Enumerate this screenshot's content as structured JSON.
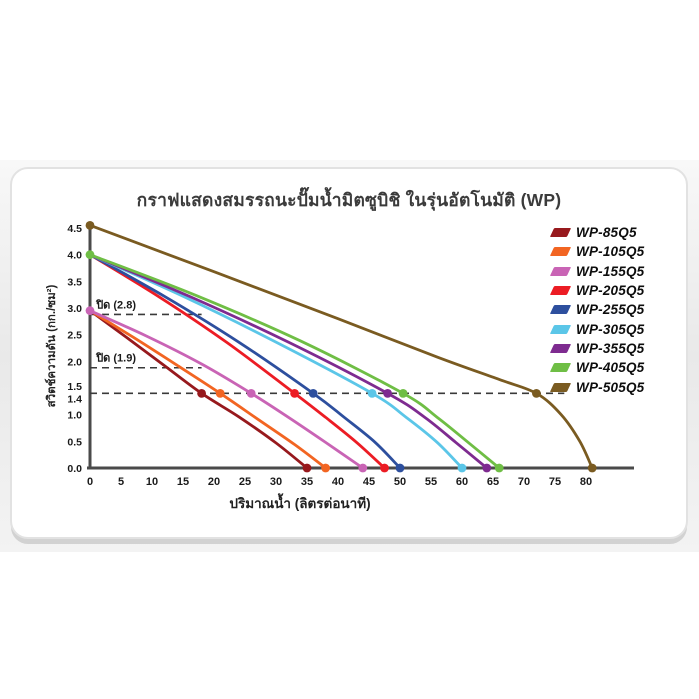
{
  "title": "กราฟแสดงสมรรถนะปั๊มน้ำมิตซูบิชิ ในรุ่นอัตโนมัติ (WP)",
  "chart_data": {
    "type": "line",
    "title": "กราฟแสดงสมรรถนะปั๊มน้ำมิตซูบิชิ ในรุ่นอัตโนมัติ (WP)",
    "xlabel": "ปริมาณน้ำ (ลิตรต่อนาที)",
    "ylabel": "สวิตช์ความดัน (กก./ซม²)",
    "xlim": [
      0,
      80
    ],
    "ylim": [
      0,
      4.5
    ],
    "grid": false,
    "legend_position": "right",
    "x_ticks": [
      0,
      5,
      10,
      15,
      20,
      25,
      30,
      35,
      40,
      45,
      50,
      55,
      60,
      65,
      70,
      75,
      80
    ],
    "y_ticks": [
      "0.0",
      "0.5",
      "1.0",
      "1.4",
      "1.5",
      "2.0",
      "2.5",
      "3.0",
      "3.5",
      "4.0",
      "4.5"
    ],
    "annotations": [
      {
        "label": "ปิด (2.8)",
        "y": 2.88,
        "x_start": 0,
        "x_end": 18,
        "label_x": 1
      },
      {
        "label": "ปิด (1.9)",
        "y": 1.88,
        "x_start": 0,
        "x_end": 18,
        "label_x": 1
      },
      {
        "label": "",
        "y": 1.4,
        "x_start": 0,
        "x_end": 76.5,
        "label_x": 0
      }
    ],
    "series": [
      {
        "name": "WP-85Q5",
        "color": "#97191D",
        "points": [
          [
            0,
            2.95
          ],
          [
            6,
            2.44
          ],
          [
            12,
            1.92
          ],
          [
            18,
            1.4
          ],
          [
            24,
            0.96
          ],
          [
            30,
            0.47
          ],
          [
            35,
            0
          ]
        ],
        "markers": [
          [
            18,
            1.4
          ],
          [
            35,
            0
          ]
        ]
      },
      {
        "name": "WP-105Q5",
        "color": "#F26522",
        "points": [
          [
            0,
            2.95
          ],
          [
            7,
            2.45
          ],
          [
            14,
            1.93
          ],
          [
            21,
            1.4
          ],
          [
            27,
            0.92
          ],
          [
            33,
            0.44
          ],
          [
            38,
            0
          ]
        ],
        "markers": [
          [
            21,
            1.4
          ],
          [
            38,
            0
          ]
        ]
      },
      {
        "name": "WP-155Q5",
        "color": "#C964B5",
        "points": [
          [
            0,
            2.95
          ],
          [
            9,
            2.48
          ],
          [
            18,
            1.95
          ],
          [
            26,
            1.4
          ],
          [
            32,
            0.95
          ],
          [
            38,
            0.48
          ],
          [
            44,
            0
          ]
        ],
        "markers": [
          [
            0,
            2.95
          ],
          [
            26,
            1.4
          ],
          [
            44,
            0
          ]
        ]
      },
      {
        "name": "WP-205Q5",
        "color": "#EC1C24",
        "points": [
          [
            0,
            4.0
          ],
          [
            11,
            3.22
          ],
          [
            22,
            2.36
          ],
          [
            33,
            1.4
          ],
          [
            38,
            0.95
          ],
          [
            43,
            0.48
          ],
          [
            47.5,
            0
          ]
        ],
        "markers": [
          [
            33,
            1.4
          ],
          [
            47.5,
            0
          ]
        ]
      },
      {
        "name": "WP-255Q5",
        "color": "#2D4F9E",
        "points": [
          [
            0,
            4.0
          ],
          [
            12,
            3.22
          ],
          [
            24,
            2.36
          ],
          [
            36,
            1.4
          ],
          [
            41,
            0.95
          ],
          [
            46,
            0.48
          ],
          [
            50,
            0
          ]
        ],
        "markers": [
          [
            36,
            1.4
          ],
          [
            50,
            0
          ]
        ]
      },
      {
        "name": "WP-305Q5",
        "color": "#5BC6E8",
        "points": [
          [
            0,
            4.0
          ],
          [
            15,
            3.22
          ],
          [
            30,
            2.36
          ],
          [
            45.5,
            1.4
          ],
          [
            51,
            0.95
          ],
          [
            56,
            0.48
          ],
          [
            60,
            0
          ]
        ],
        "markers": [
          [
            45.5,
            1.4
          ],
          [
            60,
            0
          ]
        ]
      },
      {
        "name": "WP-355Q5",
        "color": "#7E2B90",
        "points": [
          [
            0,
            4.0
          ],
          [
            16,
            3.22
          ],
          [
            32,
            2.36
          ],
          [
            48,
            1.4
          ],
          [
            54,
            0.95
          ],
          [
            59,
            0.48
          ],
          [
            64,
            0
          ]
        ],
        "markers": [
          [
            48,
            1.4
          ],
          [
            64,
            0
          ]
        ]
      },
      {
        "name": "WP-405Q5",
        "color": "#6FBE45",
        "points": [
          [
            0,
            4.0
          ],
          [
            17,
            3.24
          ],
          [
            34,
            2.38
          ],
          [
            50.5,
            1.4
          ],
          [
            56,
            0.95
          ],
          [
            61,
            0.48
          ],
          [
            66,
            0
          ]
        ],
        "markers": [
          [
            0,
            4.0
          ],
          [
            50.5,
            1.4
          ],
          [
            66,
            0
          ]
        ]
      },
      {
        "name": "WP-505Q5",
        "color": "#7A5B21",
        "points": [
          [
            0,
            4.55
          ],
          [
            20,
            3.68
          ],
          [
            40,
            2.8
          ],
          [
            56,
            2.08
          ],
          [
            66,
            1.66
          ],
          [
            72,
            1.4
          ],
          [
            76,
            1.0
          ],
          [
            79,
            0.5
          ],
          [
            81,
            0
          ]
        ],
        "markers": [
          [
            0,
            4.55
          ],
          [
            72,
            1.4
          ],
          [
            81,
            0
          ]
        ]
      }
    ]
  }
}
